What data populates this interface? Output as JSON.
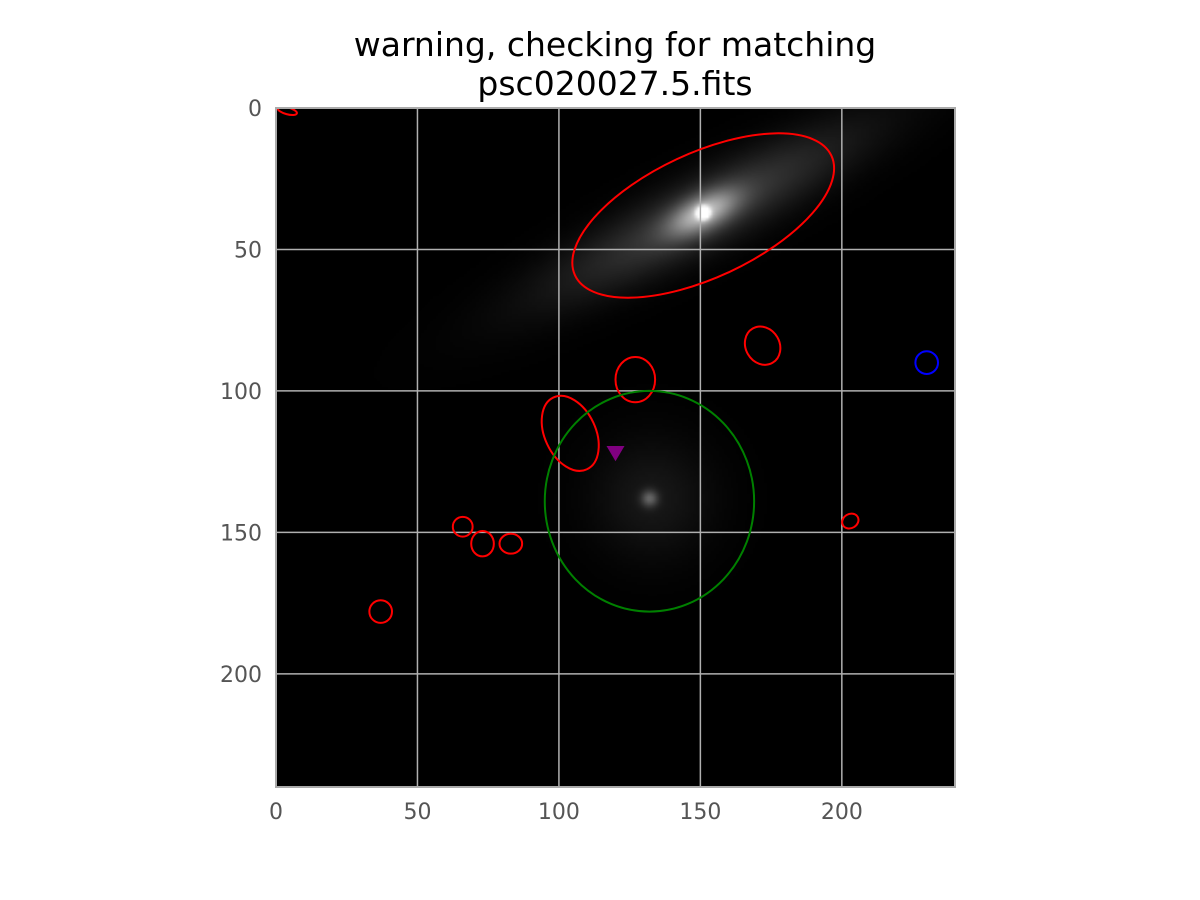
{
  "chart_data": {
    "type": "scatter",
    "title_lines": [
      "warning, checking for matching",
      "psc020027.5.fits"
    ],
    "xlabel": "",
    "ylabel": "",
    "xlim": [
      0,
      240
    ],
    "ylim": [
      240,
      0
    ],
    "y_axis_inverted": true,
    "x_ticks": [
      0,
      50,
      100,
      150,
      200
    ],
    "y_ticks": [
      0,
      50,
      100,
      150,
      200
    ],
    "grid": true,
    "grid_color": "#b0b0b0",
    "background_color": "#000000",
    "image": {
      "colormap": "gray",
      "sources": [
        {
          "x": 151,
          "y": 37,
          "sx": 40,
          "sy": 8,
          "angle_deg": -27,
          "peak": 0.2
        },
        {
          "x": 151,
          "y": 37,
          "sx": 9,
          "sy": 4,
          "angle_deg": -27,
          "peak": 0.55
        },
        {
          "x": 151,
          "y": 37,
          "sx": 1.5,
          "sy": 1.5,
          "angle_deg": 0,
          "peak": 1.0
        },
        {
          "x": 133,
          "y": 138,
          "sx": 14,
          "sy": 14,
          "angle_deg": 0,
          "peak": 0.07
        },
        {
          "x": 132,
          "y": 138,
          "sx": 2,
          "sy": 2,
          "angle_deg": 0,
          "peak": 0.3
        }
      ]
    },
    "ellipses": [
      {
        "x": 151,
        "y": 38,
        "a": 50,
        "b": 22,
        "angle_deg": -25,
        "color": "#ff0000"
      },
      {
        "x": 4,
        "y": 1,
        "a": 3.5,
        "b": 1.2,
        "angle_deg": 15,
        "color": "#ff0000"
      },
      {
        "x": 172,
        "y": 84,
        "a": 7,
        "b": 6,
        "angle_deg": 60,
        "color": "#ff0000"
      },
      {
        "x": 127,
        "y": 96,
        "a": 7,
        "b": 8,
        "angle_deg": 0,
        "color": "#ff0000"
      },
      {
        "x": 104,
        "y": 115,
        "a": 14,
        "b": 9,
        "angle_deg": 65,
        "color": "#ff0000"
      },
      {
        "x": 66,
        "y": 148,
        "a": 3.5,
        "b": 3.5,
        "angle_deg": 0,
        "color": "#ff0000"
      },
      {
        "x": 73,
        "y": 154,
        "a": 4,
        "b": 4.5,
        "angle_deg": 0,
        "color": "#ff0000"
      },
      {
        "x": 83,
        "y": 154,
        "a": 4,
        "b": 3.5,
        "angle_deg": 0,
        "color": "#ff0000"
      },
      {
        "x": 37,
        "y": 178,
        "a": 4,
        "b": 4,
        "angle_deg": 0,
        "color": "#ff0000"
      },
      {
        "x": 203,
        "y": 146,
        "a": 3,
        "b": 2.5,
        "angle_deg": -30,
        "color": "#ff0000"
      },
      {
        "x": 230,
        "y": 90,
        "a": 4,
        "b": 4,
        "angle_deg": 0,
        "color": "#0000ff"
      },
      {
        "x": 132,
        "y": 139,
        "a": 37,
        "b": 39,
        "angle_deg": 0,
        "color": "#008000"
      }
    ],
    "markers": [
      {
        "x": 120,
        "y": 122,
        "shape": "triangle-down",
        "color": "#800080"
      }
    ]
  }
}
